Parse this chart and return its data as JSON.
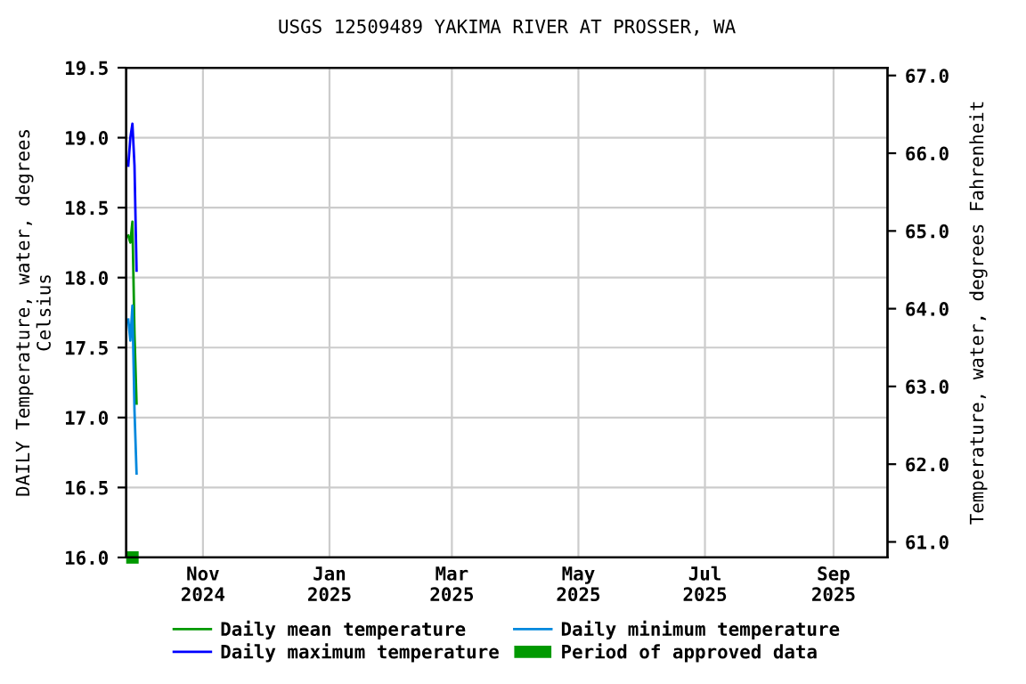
{
  "chart_data": {
    "type": "line",
    "title": "USGS 12509489 YAKIMA RIVER AT PROSSER, WA",
    "ylabel": "DAILY Temperature, water, degrees\nCelsius",
    "y2label": "Temperature, water, degrees Fahrenheit",
    "x": [
      "2024-09-26",
      "2024-09-27",
      "2024-09-28",
      "2024-09-29",
      "2024-09-30"
    ],
    "series": [
      {
        "name": "Daily mean temperature",
        "color": "#009900",
        "values": [
          18.3,
          18.25,
          18.4,
          17.6,
          17.1
        ]
      },
      {
        "name": "Daily maximum temperature",
        "color": "#0000ff",
        "values": [
          18.8,
          19.0,
          19.1,
          18.8,
          18.05
        ]
      },
      {
        "name": "Daily minimum temperature",
        "color": "#0088dd",
        "values": [
          17.7,
          17.55,
          17.8,
          17.05,
          16.6
        ]
      },
      {
        "name": "Period of approved data",
        "type": "step",
        "color": "#009900",
        "x": [
          "2024-09-25",
          "2024-10-01"
        ],
        "values": [
          16.0,
          16.0
        ]
      }
    ],
    "xlim": [
      "2024-09-25",
      "2025-09-27"
    ],
    "xticks": [
      {
        "value": "2024-11-01",
        "label": "Nov\n2024"
      },
      {
        "value": "2025-01-01",
        "label": "Jan\n2025"
      },
      {
        "value": "2025-03-01",
        "label": "Mar\n2025"
      },
      {
        "value": "2025-05-01",
        "label": "May\n2025"
      },
      {
        "value": "2025-07-01",
        "label": "Jul\n2025"
      },
      {
        "value": "2025-09-01",
        "label": "Sep\n2025"
      }
    ],
    "ylim": [
      16.0,
      19.5
    ],
    "yticks": [
      {
        "value": 16.0,
        "label": "16.0"
      },
      {
        "value": 16.5,
        "label": "16.5"
      },
      {
        "value": 17.0,
        "label": "17.0"
      },
      {
        "value": 17.5,
        "label": "17.5"
      },
      {
        "value": 18.0,
        "label": "18.0"
      },
      {
        "value": 18.5,
        "label": "18.5"
      },
      {
        "value": 19.0,
        "label": "19.0"
      },
      {
        "value": 19.5,
        "label": "19.5"
      }
    ],
    "y2lim": [
      60.8,
      67.1
    ],
    "y2ticks": [
      {
        "value": 61,
        "label": "61.0"
      },
      {
        "value": 62,
        "label": "62.0"
      },
      {
        "value": 63,
        "label": "63.0"
      },
      {
        "value": 64,
        "label": "64.0"
      },
      {
        "value": 65,
        "label": "65.0"
      },
      {
        "value": 66,
        "label": "66.0"
      },
      {
        "value": 67,
        "label": "67.0"
      }
    ],
    "grid": true,
    "legend": "bottom",
    "marker": "none",
    "line_style": "solid"
  }
}
